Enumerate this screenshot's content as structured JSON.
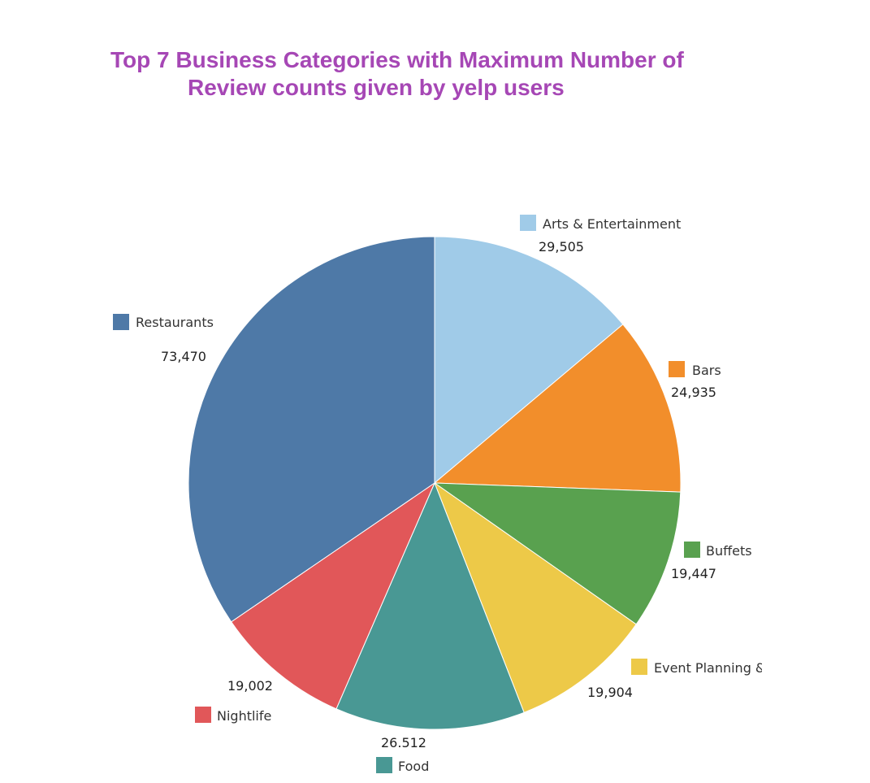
{
  "title": {
    "line1": "Top 7 Business Categories with Maximum Number of",
    "line2": "Review counts given by yelp users"
  },
  "chart_data": {
    "type": "pie",
    "title": "Top 7 Business Categories with Maximum Number of Review counts given by yelp users",
    "slices": [
      {
        "label": "Arts & Entertainment",
        "value_label": "29,505",
        "value": 29505,
        "color": "#a0cbe8"
      },
      {
        "label": "Bars",
        "value_label": "24,935",
        "value": 24935,
        "color": "#f28e2b"
      },
      {
        "label": "Buffets",
        "value_label": "19,447",
        "value": 19447,
        "color": "#59a14f"
      },
      {
        "label": "Event Planning &",
        "value_label": "19,904",
        "value": 19904,
        "color": "#edc948"
      },
      {
        "label": "Food",
        "value_label": "26.512",
        "value": 26512,
        "color": "#499894"
      },
      {
        "label": "Nightlife",
        "value_label": "19,002",
        "value": 19002,
        "color": "#e15759"
      },
      {
        "label": "Restaurants",
        "value_label": "73,470",
        "value": 73470,
        "color": "#4e79a7"
      }
    ]
  }
}
